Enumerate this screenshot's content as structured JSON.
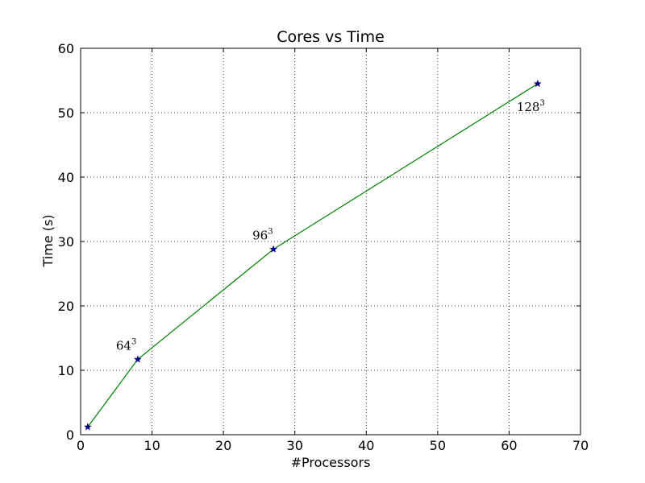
{
  "chart_data": {
    "type": "line",
    "title": "Cores vs Time",
    "xlabel": "#Processors",
    "ylabel": "Time (s)",
    "xlim": [
      0,
      70
    ],
    "ylim": [
      0,
      60
    ],
    "xticks": [
      0,
      10,
      20,
      30,
      40,
      50,
      60,
      70
    ],
    "yticks": [
      0,
      10,
      20,
      30,
      40,
      50,
      60
    ],
    "grid": true,
    "line_color": "#008000",
    "marker": "star",
    "marker_color": "#000080",
    "series": [
      {
        "x": [
          1,
          8,
          27,
          64
        ],
        "y": [
          1.2,
          11.7,
          28.8,
          54.5
        ]
      }
    ],
    "annotations": [
      {
        "base": "64",
        "sup": "3",
        "x": 8,
        "y": 11.7
      },
      {
        "base": "96",
        "sup": "3",
        "x": 27,
        "y": 28.8
      },
      {
        "base": "128",
        "sup": "3",
        "x": 64,
        "y": 54.5
      }
    ]
  }
}
